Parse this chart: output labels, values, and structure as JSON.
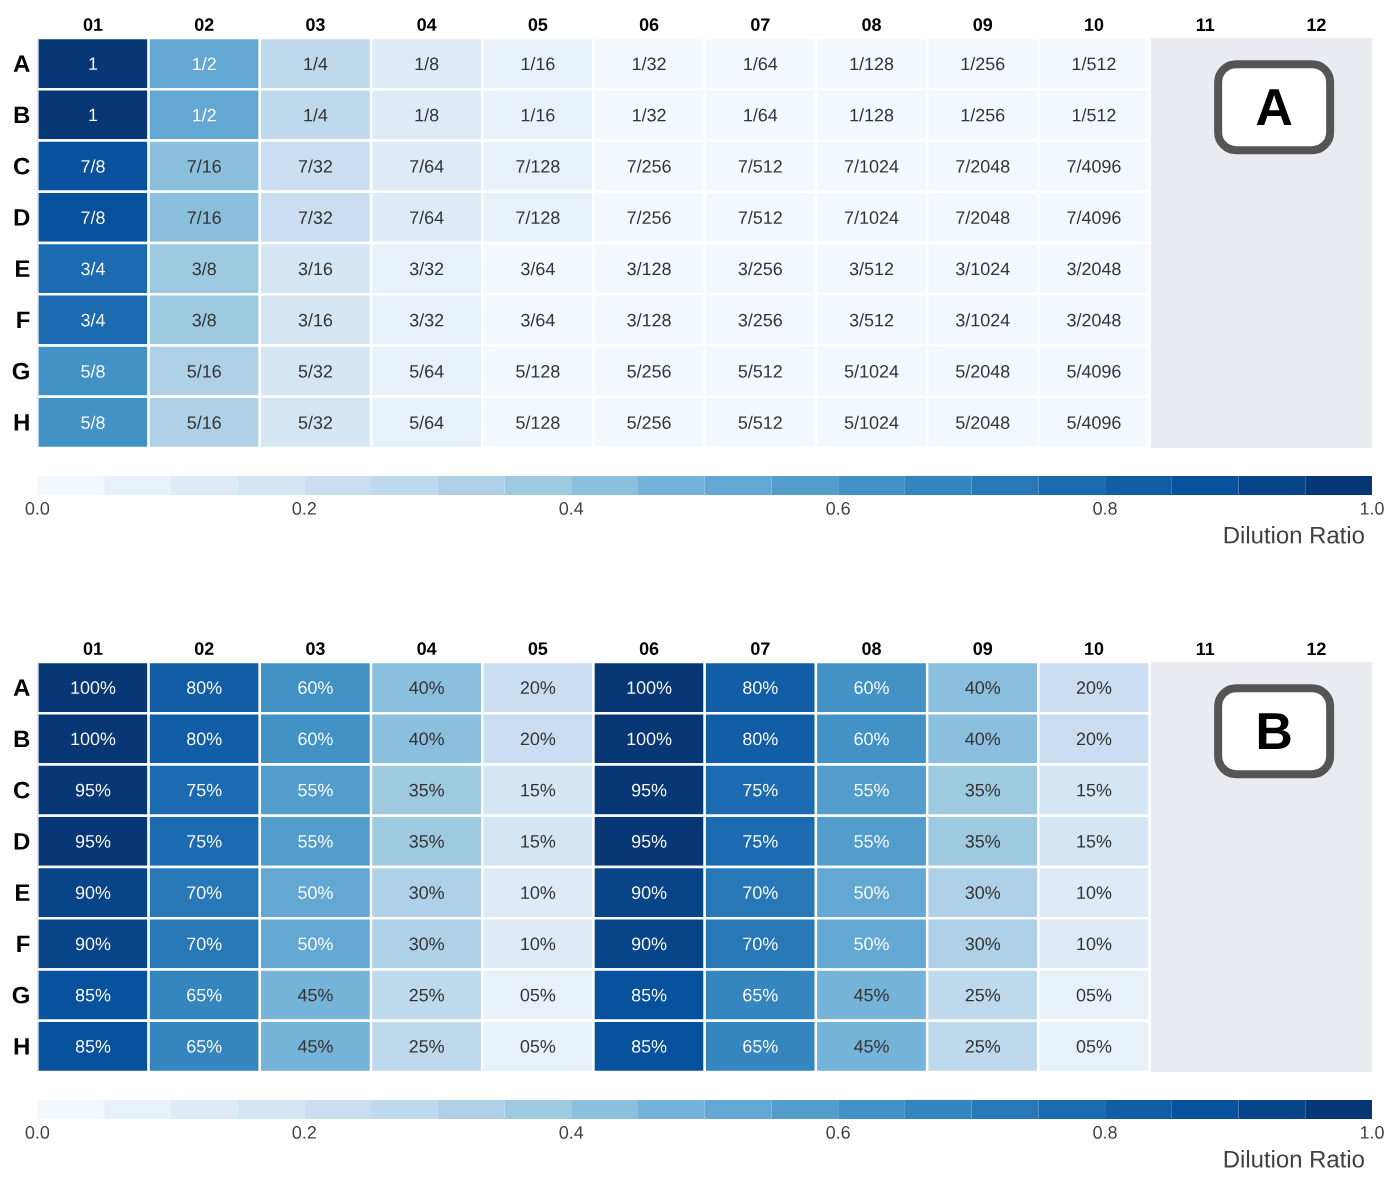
{
  "chart_data": [
    {
      "type": "heatmap",
      "categories": [
        "01",
        "02",
        "03",
        "04",
        "05",
        "06",
        "07",
        "08",
        "09",
        "10",
        "11",
        "12"
      ],
      "y_categories": [
        "A",
        "B",
        "C",
        "D",
        "E",
        "F",
        "G",
        "H"
      ],
      "cells": [
        [
          1,
          0.5,
          0.25,
          0.125,
          0.0625,
          0.03125,
          0.015625,
          0.0078125,
          0.00390625,
          0.001953125,
          null,
          null
        ],
        [
          1,
          0.5,
          0.25,
          0.125,
          0.0625,
          0.03125,
          0.015625,
          0.0078125,
          0.00390625,
          0.001953125,
          null,
          null
        ],
        [
          0.875,
          0.4375,
          0.21875,
          0.109375,
          0.0546875,
          0.02734375,
          0.013671875,
          0.0068359375,
          0.00341796875,
          0.001708984375,
          null,
          null
        ],
        [
          0.875,
          0.4375,
          0.21875,
          0.109375,
          0.0546875,
          0.02734375,
          0.013671875,
          0.0068359375,
          0.00341796875,
          0.001708984375,
          null,
          null
        ],
        [
          0.75,
          0.375,
          0.1875,
          0.09375,
          0.046875,
          0.0234375,
          0.01171875,
          0.005859375,
          0.0029296875,
          0.00146484375,
          null,
          null
        ],
        [
          0.75,
          0.375,
          0.1875,
          0.09375,
          0.046875,
          0.0234375,
          0.01171875,
          0.005859375,
          0.0029296875,
          0.00146484375,
          null,
          null
        ],
        [
          0.625,
          0.3125,
          0.15625,
          0.078125,
          0.0390625,
          0.01953125,
          0.009765625,
          0.0048828125,
          0.00244140625,
          0.001220703125,
          null,
          null
        ],
        [
          0.625,
          0.3125,
          0.15625,
          0.078125,
          0.0390625,
          0.01953125,
          0.009765625,
          0.0048828125,
          0.00244140625,
          0.001220703125,
          null,
          null
        ]
      ],
      "cell_labels": [
        [
          "1",
          "1/2",
          "1/4",
          "1/8",
          "1/16",
          "1/32",
          "1/64",
          "1/128",
          "1/256",
          "1/512",
          null,
          null
        ],
        [
          "1",
          "1/2",
          "1/4",
          "1/8",
          "1/16",
          "1/32",
          "1/64",
          "1/128",
          "1/256",
          "1/512",
          null,
          null
        ],
        [
          "7/8",
          "7/16",
          "7/32",
          "7/64",
          "7/128",
          "7/256",
          "7/512",
          "7/1024",
          "7/2048",
          "7/4096",
          null,
          null
        ],
        [
          "7/8",
          "7/16",
          "7/32",
          "7/64",
          "7/128",
          "7/256",
          "7/512",
          "7/1024",
          "7/2048",
          "7/4096",
          null,
          null
        ],
        [
          "3/4",
          "3/8",
          "3/16",
          "3/32",
          "3/64",
          "3/128",
          "3/256",
          "3/512",
          "3/1024",
          "3/2048",
          null,
          null
        ],
        [
          "3/4",
          "3/8",
          "3/16",
          "3/32",
          "3/64",
          "3/128",
          "3/256",
          "3/512",
          "3/1024",
          "3/2048",
          null,
          null
        ],
        [
          "5/8",
          "5/16",
          "5/32",
          "5/64",
          "5/128",
          "5/256",
          "5/512",
          "5/1024",
          "5/2048",
          "5/4096",
          null,
          null
        ],
        [
          "5/8",
          "5/16",
          "5/32",
          "5/64",
          "5/128",
          "5/256",
          "5/512",
          "5/1024",
          "5/2048",
          "5/4096",
          null,
          null
        ]
      ],
      "clim": [
        0,
        1
      ],
      "cticks": [
        {
          "value": 0,
          "label": "0.0"
        },
        {
          "value": 0.2,
          "label": "0.2"
        },
        {
          "value": 0.4,
          "label": "0.4"
        },
        {
          "value": 0.6,
          "label": "0.6"
        },
        {
          "value": 0.8,
          "label": "0.8"
        },
        {
          "value": 1,
          "label": "1.0"
        }
      ],
      "clabel": "Dilution Ratio",
      "annotations": [
        "A"
      ]
    },
    {
      "type": "heatmap",
      "categories": [
        "01",
        "02",
        "03",
        "04",
        "05",
        "06",
        "07",
        "08",
        "09",
        "10",
        "11",
        "12"
      ],
      "y_categories": [
        "A",
        "B",
        "C",
        "D",
        "E",
        "F",
        "G",
        "H"
      ],
      "cells": [
        [
          1,
          0.8,
          0.6,
          0.4,
          0.2,
          1,
          0.8,
          0.6,
          0.4,
          0.2,
          null,
          null
        ],
        [
          1,
          0.8,
          0.6,
          0.4,
          0.2,
          1,
          0.8,
          0.6,
          0.4,
          0.2,
          null,
          null
        ],
        [
          0.95,
          0.75,
          0.55,
          0.35,
          0.15,
          0.95,
          0.75,
          0.55,
          0.35,
          0.15,
          null,
          null
        ],
        [
          0.95,
          0.75,
          0.55,
          0.35,
          0.15,
          0.95,
          0.75,
          0.55,
          0.35,
          0.15,
          null,
          null
        ],
        [
          0.9,
          0.7,
          0.5,
          0.3,
          0.1,
          0.9,
          0.7,
          0.5,
          0.3,
          0.1,
          null,
          null
        ],
        [
          0.9,
          0.7,
          0.5,
          0.3,
          0.1,
          0.9,
          0.7,
          0.5,
          0.3,
          0.1,
          null,
          null
        ],
        [
          0.85,
          0.65,
          0.45,
          0.25,
          0.05,
          0.85,
          0.65,
          0.45,
          0.25,
          0.05,
          null,
          null
        ],
        [
          0.85,
          0.65,
          0.45,
          0.25,
          0.05,
          0.85,
          0.65,
          0.45,
          0.25,
          0.05,
          null,
          null
        ]
      ],
      "cell_labels": [
        [
          "100%",
          "80%",
          "60%",
          "40%",
          "20%",
          "100%",
          "80%",
          "60%",
          "40%",
          "20%",
          null,
          null
        ],
        [
          "100%",
          "80%",
          "60%",
          "40%",
          "20%",
          "100%",
          "80%",
          "60%",
          "40%",
          "20%",
          null,
          null
        ],
        [
          "95%",
          "75%",
          "55%",
          "35%",
          "15%",
          "95%",
          "75%",
          "55%",
          "35%",
          "15%",
          null,
          null
        ],
        [
          "95%",
          "75%",
          "55%",
          "35%",
          "15%",
          "95%",
          "75%",
          "55%",
          "35%",
          "15%",
          null,
          null
        ],
        [
          "90%",
          "70%",
          "50%",
          "30%",
          "10%",
          "90%",
          "70%",
          "50%",
          "30%",
          "10%",
          null,
          null
        ],
        [
          "90%",
          "70%",
          "50%",
          "30%",
          "10%",
          "90%",
          "70%",
          "50%",
          "30%",
          "10%",
          null,
          null
        ],
        [
          "85%",
          "65%",
          "45%",
          "25%",
          "05%",
          "85%",
          "65%",
          "45%",
          "25%",
          "05%",
          null,
          null
        ],
        [
          "85%",
          "65%",
          "45%",
          "25%",
          "05%",
          "85%",
          "65%",
          "45%",
          "25%",
          "05%",
          null,
          null
        ]
      ],
      "clim": [
        0,
        1
      ],
      "cticks": [
        {
          "value": 0,
          "label": "0.0"
        },
        {
          "value": 0.2,
          "label": "0.2"
        },
        {
          "value": 0.4,
          "label": "0.4"
        },
        {
          "value": 0.6,
          "label": "0.6"
        },
        {
          "value": 0.8,
          "label": "0.8"
        },
        {
          "value": 1,
          "label": "1.0"
        }
      ],
      "clabel": "Dilution Ratio",
      "annotations": [
        "B"
      ]
    }
  ]
}
